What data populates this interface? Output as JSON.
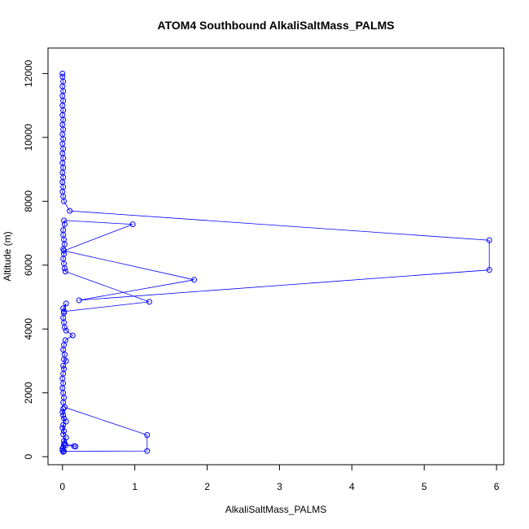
{
  "chart_data": {
    "type": "line",
    "title": "ATOM4 Southbound AlkaliSaltMass_PALMS",
    "xlabel": "AlkaliSaltMass_PALMS",
    "ylabel": "Altitude (m)",
    "xlim": [
      -0.2,
      6.1
    ],
    "ylim": [
      -250,
      12800
    ],
    "x_ticks": [
      0,
      1,
      2,
      3,
      4,
      5,
      6
    ],
    "y_ticks": [
      0,
      2000,
      4000,
      6000,
      8000,
      10000,
      12000
    ],
    "grid": false,
    "legend": "none",
    "series": [
      {
        "color": "#0000ff",
        "marker": "open-circle",
        "points": [
          [
            0.0,
            12000
          ],
          [
            0.0,
            11900
          ],
          [
            0.01,
            11750
          ],
          [
            0.0,
            11600
          ],
          [
            0.01,
            11450
          ],
          [
            0.0,
            11300
          ],
          [
            0.01,
            11150
          ],
          [
            0.0,
            11000
          ],
          [
            0.01,
            10850
          ],
          [
            0.0,
            10700
          ],
          [
            0.01,
            10550
          ],
          [
            0.0,
            10400
          ],
          [
            0.01,
            10250
          ],
          [
            0.0,
            10100
          ],
          [
            0.01,
            9950
          ],
          [
            0.0,
            9800
          ],
          [
            0.01,
            9650
          ],
          [
            0.0,
            9500
          ],
          [
            0.01,
            9350
          ],
          [
            0.0,
            9200
          ],
          [
            0.01,
            9050
          ],
          [
            0.0,
            8900
          ],
          [
            0.01,
            8750
          ],
          [
            0.0,
            8600
          ],
          [
            0.01,
            8450
          ],
          [
            0.0,
            8300
          ],
          [
            0.01,
            8150
          ],
          [
            0.02,
            8000
          ],
          [
            0.1,
            7700
          ],
          [
            5.9,
            6780
          ],
          [
            5.9,
            5850
          ],
          [
            0.23,
            4900
          ],
          [
            1.82,
            5540
          ],
          [
            0.02,
            6450
          ],
          [
            0.97,
            7280
          ],
          [
            0.02,
            7400
          ],
          [
            0.03,
            7280
          ],
          [
            0.01,
            7100
          ],
          [
            0.01,
            6950
          ],
          [
            0.02,
            6800
          ],
          [
            0.03,
            6650
          ],
          [
            0.01,
            6500
          ],
          [
            0.02,
            6350
          ],
          [
            0.01,
            6200
          ],
          [
            0.02,
            6050
          ],
          [
            0.03,
            5900
          ],
          [
            0.04,
            5800
          ],
          [
            1.2,
            4850
          ],
          [
            0.02,
            4550
          ],
          [
            0.05,
            4800
          ],
          [
            0.01,
            4650
          ],
          [
            0.02,
            4500
          ],
          [
            0.01,
            4350
          ],
          [
            0.02,
            4200
          ],
          [
            0.03,
            4050
          ],
          [
            0.05,
            3950
          ],
          [
            0.14,
            3800
          ],
          [
            0.04,
            3650
          ],
          [
            0.02,
            3500
          ],
          [
            0.01,
            3350
          ],
          [
            0.03,
            3200
          ],
          [
            0.02,
            3050
          ],
          [
            0.05,
            3000
          ],
          [
            0.01,
            2850
          ],
          [
            0.02,
            2750
          ],
          [
            0.01,
            2600
          ],
          [
            0.0,
            2450
          ],
          [
            0.01,
            2300
          ],
          [
            0.0,
            2150
          ],
          [
            0.01,
            2000
          ],
          [
            0.02,
            1850
          ],
          [
            0.01,
            1700
          ],
          [
            0.03,
            1550
          ],
          [
            1.17,
            680
          ],
          [
            1.17,
            180
          ],
          [
            0.02,
            170
          ],
          [
            0.0,
            200
          ],
          [
            0.01,
            300
          ],
          [
            0.04,
            350
          ],
          [
            0.16,
            330
          ],
          [
            0.18,
            320
          ],
          [
            0.03,
            420
          ],
          [
            0.02,
            500
          ],
          [
            0.05,
            600
          ],
          [
            0.01,
            700
          ],
          [
            0.02,
            800
          ],
          [
            0.0,
            900
          ],
          [
            0.01,
            1000
          ],
          [
            0.05,
            1100
          ],
          [
            0.02,
            1200
          ],
          [
            0.01,
            1300
          ],
          [
            0.0,
            1400
          ],
          [
            0.01,
            1500
          ],
          [
            0.02,
            400
          ],
          [
            0.0,
            250
          ],
          [
            0.01,
            150
          ]
        ]
      }
    ]
  }
}
